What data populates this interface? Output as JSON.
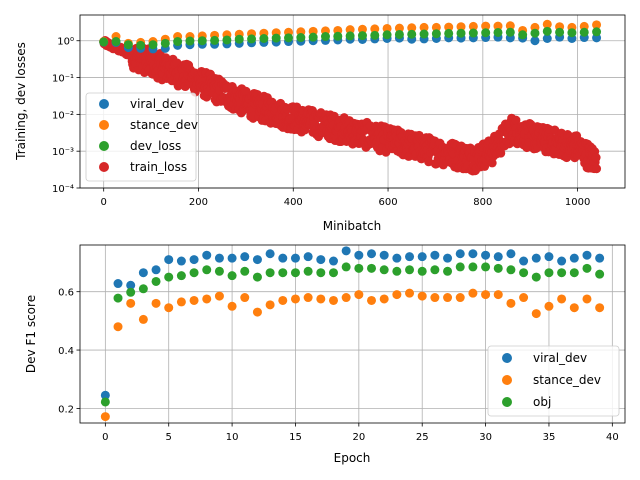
{
  "chart_data": [
    {
      "type": "scatter",
      "xlabel": "Minibatch",
      "ylabel": "Training, dev losses",
      "yscale": "log",
      "xlim": [
        -50,
        1100
      ],
      "ylim": [
        0.0001,
        5
      ],
      "xticks": [
        0,
        200,
        400,
        600,
        800,
        1000
      ],
      "yticks": [
        0.0001,
        0.001,
        0.01,
        0.1,
        1
      ],
      "ytick_labels": [
        "10⁻⁴",
        "10⁻³",
        "10⁻²",
        "10⁻¹",
        "10⁰"
      ],
      "grid": true,
      "legend": "lower-left",
      "series": [
        {
          "name": "viral_dev",
          "color": "#1f77b4",
          "x_start": 0,
          "x_step": 26,
          "count": 41,
          "values": [
            0.92,
            0.9,
            0.65,
            0.62,
            0.6,
            0.62,
            0.75,
            0.78,
            0.8,
            0.8,
            0.82,
            0.85,
            0.88,
            0.9,
            0.92,
            0.95,
            0.97,
            1.0,
            1.02,
            1.05,
            1.1,
            1.08,
            1.12,
            1.15,
            1.18,
            1.1,
            1.12,
            1.15,
            1.2,
            1.18,
            1.2,
            1.22,
            1.25,
            1.2,
            1.18,
            1.0,
            1.15,
            1.25,
            1.15,
            1.22,
            1.2
          ]
        },
        {
          "name": "stance_dev",
          "color": "#ff7f0e",
          "x_start": 0,
          "x_step": 26,
          "count": 41,
          "values": [
            0.95,
            1.3,
            0.85,
            0.9,
            0.95,
            1.1,
            1.3,
            1.3,
            1.35,
            1.4,
            1.45,
            1.5,
            1.55,
            1.6,
            1.65,
            1.7,
            1.75,
            1.8,
            1.85,
            1.9,
            2.0,
            2.05,
            2.1,
            2.15,
            2.2,
            2.25,
            2.3,
            2.3,
            2.35,
            2.4,
            2.45,
            2.5,
            2.5,
            2.55,
            1.9,
            2.3,
            2.8,
            2.4,
            2.3,
            2.45,
            2.7
          ]
        },
        {
          "name": "dev_loss",
          "color": "#2ca02c",
          "x_start": 0,
          "x_step": 26,
          "count": 41,
          "values": [
            0.93,
            0.95,
            0.78,
            0.75,
            0.78,
            0.85,
            0.95,
            0.98,
            1.0,
            1.02,
            1.05,
            1.1,
            1.12,
            1.15,
            1.18,
            1.2,
            1.22,
            1.25,
            1.3,
            1.32,
            1.35,
            1.38,
            1.4,
            1.45,
            1.48,
            1.5,
            1.52,
            1.55,
            1.58,
            1.6,
            1.62,
            1.65,
            1.68,
            1.7,
            1.45,
            1.6,
            1.8,
            1.7,
            1.65,
            1.7,
            1.75
          ]
        },
        {
          "name": "train_loss",
          "color": "#d62728",
          "x_range": [
            0,
            1040
          ],
          "count": 1040,
          "trend_log10": [
            [
              0,
              -0.05
            ],
            [
              100,
              -0.6
            ],
            [
              200,
              -1.1
            ],
            [
              300,
              -1.7
            ],
            [
              400,
              -2.1
            ],
            [
              500,
              -2.4
            ],
            [
              600,
              -2.7
            ],
            [
              700,
              -3.0
            ],
            [
              780,
              -3.2
            ],
            [
              820,
              -3.0
            ],
            [
              860,
              -2.4
            ],
            [
              900,
              -2.6
            ],
            [
              1000,
              -2.9
            ],
            [
              1040,
              -3.3
            ]
          ],
          "spread_log10": 0.7
        }
      ]
    },
    {
      "type": "scatter",
      "xlabel": "Epoch",
      "ylabel": "Dev F1 score",
      "xlim": [
        -2,
        41
      ],
      "ylim": [
        0.15,
        0.76
      ],
      "xticks": [
        0,
        5,
        10,
        15,
        20,
        25,
        30,
        35,
        40
      ],
      "yticks": [
        0.2,
        0.4,
        0.6
      ],
      "grid": true,
      "legend": "lower-right",
      "x": [
        0,
        1,
        2,
        3,
        4,
        5,
        6,
        7,
        8,
        9,
        10,
        11,
        12,
        13,
        14,
        15,
        16,
        17,
        18,
        19,
        20,
        21,
        22,
        23,
        24,
        25,
        26,
        27,
        28,
        29,
        30,
        31,
        32,
        33,
        34,
        35,
        36,
        37,
        38,
        39
      ],
      "series": [
        {
          "name": "viral_dev",
          "color": "#1f77b4",
          "values": [
            0.245,
            0.628,
            0.622,
            0.665,
            0.675,
            0.71,
            0.705,
            0.71,
            0.725,
            0.715,
            0.715,
            0.72,
            0.71,
            0.73,
            0.715,
            0.715,
            0.72,
            0.71,
            0.705,
            0.74,
            0.725,
            0.73,
            0.725,
            0.715,
            0.72,
            0.72,
            0.725,
            0.715,
            0.73,
            0.73,
            0.725,
            0.72,
            0.73,
            0.705,
            0.715,
            0.72,
            0.705,
            0.715,
            0.725,
            0.715
          ]
        },
        {
          "name": "stance_dev",
          "color": "#ff7f0e",
          "values": [
            0.172,
            0.48,
            0.56,
            0.505,
            0.56,
            0.545,
            0.565,
            0.57,
            0.575,
            0.585,
            0.55,
            0.58,
            0.53,
            0.555,
            0.57,
            0.575,
            0.58,
            0.575,
            0.57,
            0.58,
            0.59,
            0.57,
            0.575,
            0.59,
            0.595,
            0.585,
            0.58,
            0.58,
            0.58,
            0.595,
            0.59,
            0.59,
            0.56,
            0.58,
            0.525,
            0.55,
            0.575,
            0.545,
            0.575,
            0.545
          ]
        },
        {
          "name": "obj",
          "color": "#2ca02c",
          "values": [
            0.222,
            0.578,
            0.598,
            0.61,
            0.635,
            0.65,
            0.655,
            0.665,
            0.675,
            0.67,
            0.655,
            0.67,
            0.65,
            0.665,
            0.665,
            0.665,
            0.67,
            0.665,
            0.665,
            0.685,
            0.68,
            0.68,
            0.675,
            0.67,
            0.675,
            0.67,
            0.675,
            0.67,
            0.685,
            0.685,
            0.685,
            0.68,
            0.675,
            0.665,
            0.65,
            0.665,
            0.665,
            0.665,
            0.68,
            0.66
          ]
        }
      ]
    }
  ]
}
